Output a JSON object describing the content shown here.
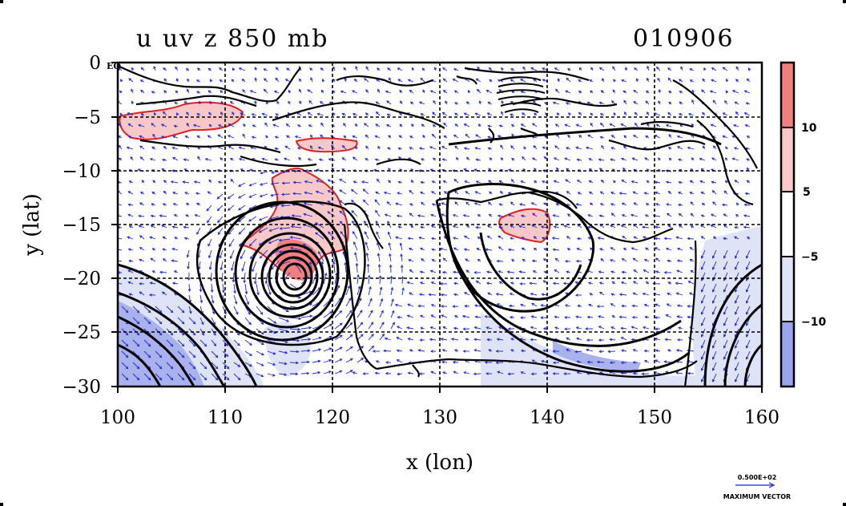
{
  "title": "u  uv  z  850  mb",
  "date": "010906",
  "eq_label": "EQ",
  "xlabel": "x (lon)",
  "ylabel": "y (lat)",
  "x_ticks": [
    "100",
    "110",
    "120",
    "130",
    "140",
    "150",
    "160"
  ],
  "y_ticks": [
    "0",
    "−5",
    "−10",
    "−15",
    "−20",
    "−25",
    "−30"
  ],
  "colorbar": {
    "labels": [
      "10",
      "5",
      "−5",
      "−10"
    ],
    "colors": [
      "#f08080",
      "#f8c8c8",
      "#ffffff",
      "#dfe3f8",
      "#9aa4ea"
    ]
  },
  "vector_key": {
    "value_label": "0.500E+02",
    "caption": "MAXIMUM VECTOR"
  },
  "map": {
    "lon_range": [
      100,
      160
    ],
    "lat_range": [
      -30,
      0
    ],
    "grid_lon": [
      110,
      120,
      130,
      140,
      150
    ],
    "grid_lat": [
      -5,
      -10,
      -15,
      -20,
      -25
    ],
    "cyclone_center": [
      117,
      -20
    ],
    "colors": {
      "positive_contour": "#e02020",
      "positive_fill": "#f8c8c8",
      "negative_fill": "#dfe3f8",
      "strong_negative_fill": "#aab2ee",
      "wind_vector": "#1a28d8",
      "height_contour": "#000000"
    }
  }
}
